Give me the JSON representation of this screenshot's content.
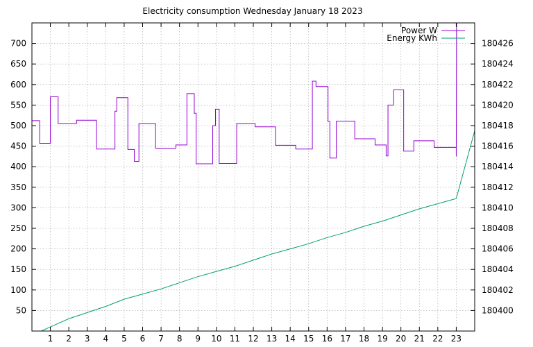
{
  "chart_data": {
    "type": "line",
    "title": "Electricity consumption Wednesday January 18 2023",
    "x_ticks": [
      "1",
      "2",
      "3",
      "4",
      "5",
      "6",
      "7",
      "8",
      "9",
      "10",
      "11",
      "12",
      "13",
      "14",
      "15",
      "16",
      "17",
      "18",
      "19",
      "20",
      "21",
      "22",
      "23"
    ],
    "xlim": [
      0,
      24
    ],
    "ylim_left": [
      0,
      750
    ],
    "ylim_right": [
      180398,
      180428
    ],
    "y_ticks_left": [
      "50",
      "100",
      "150",
      "200",
      "250",
      "300",
      "350",
      "400",
      "450",
      "500",
      "550",
      "600",
      "650",
      "700"
    ],
    "y_ticks_right": [
      "180400",
      "180402",
      "180404",
      "180406",
      "180408",
      "180410",
      "180412",
      "180414",
      "180416",
      "180418",
      "180420",
      "180422",
      "180424",
      "180426"
    ],
    "grid": true,
    "legend_position": "top-right",
    "series": [
      {
        "name": "Power W",
        "axis": "left",
        "color": "#9400d3",
        "style": "step",
        "points": [
          [
            0.0,
            512
          ],
          [
            0.42,
            512
          ],
          [
            0.42,
            457
          ],
          [
            1.0,
            457
          ],
          [
            1.0,
            570
          ],
          [
            1.42,
            570
          ],
          [
            1.42,
            505
          ],
          [
            2.42,
            505
          ],
          [
            2.42,
            513
          ],
          [
            3.5,
            513
          ],
          [
            3.5,
            443
          ],
          [
            4.5,
            443
          ],
          [
            4.5,
            535
          ],
          [
            4.6,
            535
          ],
          [
            4.6,
            568
          ],
          [
            5.2,
            568
          ],
          [
            5.2,
            442
          ],
          [
            5.55,
            442
          ],
          [
            5.55,
            413
          ],
          [
            5.8,
            413
          ],
          [
            5.8,
            505
          ],
          [
            6.7,
            505
          ],
          [
            6.7,
            445
          ],
          [
            7.8,
            445
          ],
          [
            7.8,
            453
          ],
          [
            8.4,
            453
          ],
          [
            8.4,
            578
          ],
          [
            8.8,
            578
          ],
          [
            8.8,
            530
          ],
          [
            8.9,
            530
          ],
          [
            8.9,
            407
          ],
          [
            9.8,
            407
          ],
          [
            9.8,
            500
          ],
          [
            9.95,
            500
          ],
          [
            9.95,
            540
          ],
          [
            10.15,
            540
          ],
          [
            10.15,
            408
          ],
          [
            11.1,
            408
          ],
          [
            11.1,
            505
          ],
          [
            12.1,
            505
          ],
          [
            12.1,
            497
          ],
          [
            13.2,
            497
          ],
          [
            13.2,
            452
          ],
          [
            14.3,
            452
          ],
          [
            14.3,
            443
          ],
          [
            15.2,
            443
          ],
          [
            15.2,
            608
          ],
          [
            15.4,
            608
          ],
          [
            15.4,
            595
          ],
          [
            16.05,
            595
          ],
          [
            16.05,
            510
          ],
          [
            16.15,
            510
          ],
          [
            16.15,
            421
          ],
          [
            16.5,
            421
          ],
          [
            16.5,
            511
          ],
          [
            17.5,
            511
          ],
          [
            17.5,
            468
          ],
          [
            18.6,
            468
          ],
          [
            18.6,
            453
          ],
          [
            19.2,
            453
          ],
          [
            19.2,
            426
          ],
          [
            19.3,
            426
          ],
          [
            19.3,
            550
          ],
          [
            19.6,
            550
          ],
          [
            19.6,
            587
          ],
          [
            20.15,
            587
          ],
          [
            20.15,
            438
          ],
          [
            20.7,
            438
          ],
          [
            20.7,
            463
          ],
          [
            21.8,
            463
          ],
          [
            21.8,
            447
          ],
          [
            23.0,
            447
          ],
          [
            23.0,
            425
          ],
          [
            23.02,
            750
          ],
          [
            23.04,
            750
          ]
        ]
      },
      {
        "name": "Energy KWh",
        "axis": "right",
        "color": "#009e73",
        "style": "line",
        "points": [
          [
            0.5,
            180398
          ],
          [
            1.0,
            180398.4
          ],
          [
            2.0,
            180399.2
          ],
          [
            3.0,
            180399.8
          ],
          [
            4.0,
            180400.4
          ],
          [
            5.0,
            180401.1
          ],
          [
            6.0,
            180401.6
          ],
          [
            7.0,
            180402.1
          ],
          [
            8.0,
            180402.7
          ],
          [
            9.0,
            180403.3
          ],
          [
            10.0,
            180403.8
          ],
          [
            11.0,
            180404.3
          ],
          [
            12.0,
            180404.9
          ],
          [
            13.0,
            180405.5
          ],
          [
            14.0,
            180406.0
          ],
          [
            15.0,
            180406.5
          ],
          [
            16.0,
            180407.1
          ],
          [
            17.0,
            180407.6
          ],
          [
            18.0,
            180408.2
          ],
          [
            19.0,
            180408.7
          ],
          [
            20.0,
            180409.3
          ],
          [
            21.0,
            180409.9
          ],
          [
            22.0,
            180410.4
          ],
          [
            23.0,
            180410.9
          ],
          [
            24.0,
            180417.5
          ]
        ]
      }
    ]
  }
}
